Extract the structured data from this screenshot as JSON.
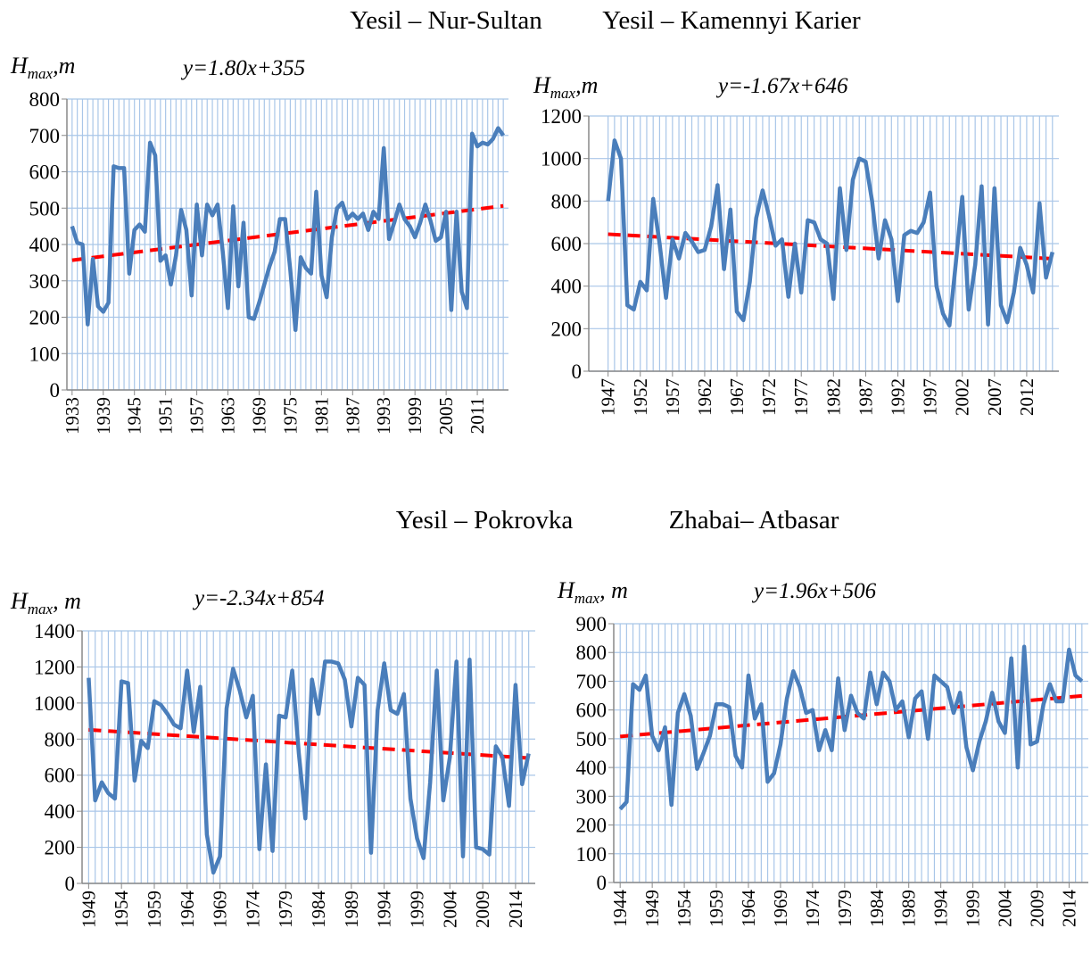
{
  "chart_data": [
    {
      "type": "line",
      "title": "Yesil – Nur-Sultan",
      "ylabel": [
        "H",
        "max",
        ",m"
      ],
      "color": "#4a7ebb",
      "grid": true,
      "trend": {
        "slope": 1.8,
        "intercept": 355,
        "label": "y=1.80x+355",
        "color": "#ff0000"
      },
      "xlim": [
        1932,
        2017
      ],
      "ylim": [
        0,
        800
      ],
      "yticks": [
        0,
        100,
        200,
        300,
        400,
        500,
        600,
        700,
        800
      ],
      "xticks": [
        1933,
        1939,
        1945,
        1951,
        1957,
        1963,
        1969,
        1975,
        1981,
        1987,
        1993,
        1999,
        2005,
        2011
      ],
      "x": [
        1933,
        1934,
        1935,
        1936,
        1937,
        1938,
        1939,
        1940,
        1941,
        1942,
        1943,
        1944,
        1945,
        1946,
        1947,
        1948,
        1949,
        1950,
        1951,
        1952,
        1953,
        1954,
        1955,
        1956,
        1957,
        1958,
        1959,
        1960,
        1961,
        1962,
        1963,
        1964,
        1965,
        1966,
        1967,
        1968,
        1969,
        1970,
        1971,
        1972,
        1973,
        1974,
        1975,
        1976,
        1977,
        1978,
        1979,
        1980,
        1981,
        1982,
        1983,
        1984,
        1985,
        1986,
        1987,
        1988,
        1989,
        1990,
        1991,
        1992,
        1993,
        1994,
        1995,
        1996,
        1997,
        1998,
        1999,
        2000,
        2001,
        2002,
        2003,
        2004,
        2005,
        2006,
        2007,
        2008,
        2009,
        2010,
        2011,
        2012,
        2013,
        2014,
        2015,
        2016
      ],
      "values": [
        450,
        405,
        400,
        180,
        360,
        230,
        215,
        240,
        615,
        610,
        610,
        320,
        440,
        455,
        435,
        680,
        645,
        355,
        370,
        290,
        370,
        495,
        440,
        260,
        510,
        370,
        510,
        480,
        510,
        380,
        225,
        505,
        285,
        460,
        200,
        195,
        240,
        290,
        340,
        380,
        470,
        470,
        330,
        165,
        365,
        335,
        320,
        545,
        315,
        255,
        420,
        500,
        515,
        470,
        485,
        470,
        485,
        440,
        490,
        470,
        665,
        415,
        460,
        510,
        470,
        450,
        420,
        460,
        510,
        465,
        410,
        420,
        490,
        220,
        490,
        270,
        225,
        705,
        670,
        680,
        675,
        690,
        720,
        700
      ]
    },
    {
      "type": "line",
      "title": "Yesil – Kamennyi Karier",
      "ylabel": [
        "H",
        "max",
        ",m"
      ],
      "color": "#4a7ebb",
      "grid": true,
      "trend": {
        "slope": -1.67,
        "intercept": 646,
        "label": "y=-1.67x+646",
        "color": "#ff0000"
      },
      "xlim": [
        1944,
        2017
      ],
      "ylim": [
        0,
        1200
      ],
      "yticks": [
        0,
        200,
        400,
        600,
        800,
        1000,
        1200
      ],
      "xticks": [
        1947,
        1952,
        1957,
        1962,
        1967,
        1972,
        1977,
        1982,
        1987,
        1992,
        1997,
        2002,
        2007,
        2012
      ],
      "x": [
        1947,
        1948,
        1949,
        1950,
        1951,
        1952,
        1953,
        1954,
        1955,
        1956,
        1957,
        1958,
        1959,
        1960,
        1961,
        1962,
        1963,
        1964,
        1965,
        1966,
        1967,
        1968,
        1969,
        1970,
        1971,
        1972,
        1973,
        1974,
        1975,
        1976,
        1977,
        1978,
        1979,
        1980,
        1981,
        1982,
        1983,
        1984,
        1985,
        1986,
        1987,
        1988,
        1989,
        1990,
        1991,
        1992,
        1993,
        1994,
        1995,
        1996,
        1997,
        1998,
        1999,
        2000,
        2001,
        2002,
        2003,
        2004,
        2005,
        2006,
        2007,
        2008,
        2009,
        2010,
        2011,
        2012,
        2013,
        2014,
        2015,
        2016
      ],
      "values": [
        800,
        1085,
        1000,
        310,
        290,
        420,
        380,
        810,
        600,
        345,
        620,
        530,
        650,
        610,
        560,
        570,
        680,
        875,
        480,
        760,
        280,
        240,
        420,
        720,
        850,
        730,
        590,
        620,
        350,
        600,
        370,
        710,
        700,
        620,
        600,
        340,
        860,
        570,
        900,
        1000,
        985,
        800,
        530,
        710,
        620,
        330,
        640,
        660,
        650,
        700,
        840,
        400,
        270,
        215,
        510,
        820,
        290,
        500,
        870,
        220,
        860,
        310,
        230,
        370,
        580,
        500,
        370,
        790,
        440,
        560
      ]
    },
    {
      "type": "line",
      "title": "Yesil – Pokrovka",
      "ylabel": [
        "H",
        "max",
        ", m"
      ],
      "color": "#4a7ebb",
      "grid": true,
      "trend": {
        "slope": -2.34,
        "intercept": 854,
        "label": "y=-2.34x+854",
        "color": "#ff0000"
      },
      "xlim": [
        1948,
        2017
      ],
      "ylim": [
        0,
        1400
      ],
      "yticks": [
        0,
        200,
        400,
        600,
        800,
        1000,
        1200,
        1400
      ],
      "xticks": [
        1949,
        1954,
        1959,
        1964,
        1969,
        1974,
        1979,
        1984,
        1989,
        1994,
        1999,
        2004,
        2009,
        2014
      ],
      "x": [
        1949,
        1950,
        1951,
        1952,
        1953,
        1954,
        1955,
        1956,
        1957,
        1958,
        1959,
        1960,
        1961,
        1962,
        1963,
        1964,
        1965,
        1966,
        1967,
        1968,
        1969,
        1970,
        1971,
        1972,
        1973,
        1974,
        1975,
        1976,
        1977,
        1978,
        1979,
        1980,
        1981,
        1982,
        1983,
        1984,
        1985,
        1986,
        1987,
        1988,
        1989,
        1990,
        1991,
        1992,
        1993,
        1994,
        1995,
        1996,
        1997,
        1998,
        1999,
        2000,
        2001,
        2002,
        2003,
        2004,
        2005,
        2006,
        2007,
        2008,
        2009,
        2010,
        2011,
        2012,
        2013,
        2014,
        2015,
        2016
      ],
      "values": [
        1140,
        460,
        560,
        500,
        470,
        1120,
        1110,
        570,
        790,
        750,
        1010,
        990,
        940,
        880,
        860,
        1180,
        840,
        1090,
        270,
        60,
        150,
        970,
        1190,
        1070,
        920,
        1040,
        190,
        660,
        180,
        930,
        920,
        1180,
        720,
        360,
        1130,
        940,
        1230,
        1230,
        1220,
        1130,
        870,
        1140,
        1100,
        170,
        960,
        1220,
        960,
        940,
        1050,
        470,
        250,
        140,
        560,
        1180,
        460,
        700,
        1230,
        150,
        1240,
        200,
        190,
        160,
        760,
        700,
        430,
        1100,
        550,
        720
      ]
    },
    {
      "type": "line",
      "title": "Zhabai– Atbasar",
      "ylabel": [
        "H",
        "max",
        ", m"
      ],
      "color": "#4a7ebb",
      "grid": true,
      "trend": {
        "slope": 1.96,
        "intercept": 506,
        "label": "y=1.96x+506",
        "color": "#ff0000"
      },
      "xlim": [
        1943,
        2017
      ],
      "ylim": [
        0,
        900
      ],
      "yticks": [
        0,
        100,
        200,
        300,
        400,
        500,
        600,
        700,
        800,
        900
      ],
      "xticks": [
        1944,
        1949,
        1954,
        1959,
        1964,
        1969,
        1974,
        1979,
        1984,
        1989,
        1994,
        1999,
        2004,
        2009,
        2014
      ],
      "x": [
        1944,
        1945,
        1946,
        1947,
        1948,
        1949,
        1950,
        1951,
        1952,
        1953,
        1954,
        1955,
        1956,
        1957,
        1958,
        1959,
        1960,
        1961,
        1962,
        1963,
        1964,
        1965,
        1966,
        1967,
        1968,
        1969,
        1970,
        1971,
        1972,
        1973,
        1974,
        1975,
        1976,
        1977,
        1978,
        1979,
        1980,
        1981,
        1982,
        1983,
        1984,
        1985,
        1986,
        1987,
        1988,
        1989,
        1990,
        1991,
        1992,
        1993,
        1994,
        1995,
        1996,
        1997,
        1998,
        1999,
        2000,
        2001,
        2002,
        2003,
        2004,
        2005,
        2006,
        2007,
        2008,
        2009,
        2010,
        2011,
        2012,
        2013,
        2014,
        2015,
        2016
      ],
      "values": [
        255,
        280,
        690,
        670,
        720,
        510,
        460,
        540,
        270,
        590,
        655,
        580,
        395,
        450,
        510,
        620,
        620,
        610,
        440,
        400,
        720,
        570,
        620,
        350,
        380,
        480,
        640,
        735,
        680,
        590,
        600,
        460,
        530,
        460,
        710,
        530,
        650,
        590,
        570,
        730,
        620,
        730,
        700,
        600,
        630,
        505,
        640,
        665,
        500,
        720,
        700,
        680,
        590,
        660,
        470,
        390,
        490,
        560,
        660,
        560,
        520,
        780,
        400,
        820,
        480,
        490,
        620,
        690,
        630,
        630,
        810,
        720,
        700
      ]
    }
  ]
}
